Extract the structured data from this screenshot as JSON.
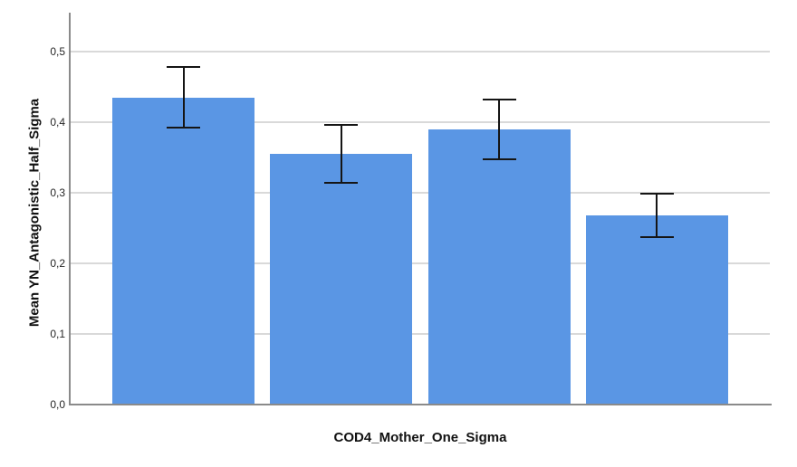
{
  "figure": {
    "background": "#ffffff"
  },
  "chart_data": {
    "type": "bar",
    "title": "",
    "xlabel": "COD4_Mother_One_Sigma",
    "ylabel": "Mean YN_Antagonistic_Half_Sigma",
    "categories": [
      "",
      "",
      "",
      ""
    ],
    "values": [
      0.435,
      0.355,
      0.39,
      0.268
    ],
    "error_low": [
      0.391,
      0.313,
      0.346,
      0.236
    ],
    "error_high": [
      0.479,
      0.397,
      0.433,
      0.3
    ],
    "ylim": [
      0,
      0.55
    ],
    "yticks": [
      0,
      0.1,
      0.2,
      0.3,
      0.4,
      0.5
    ],
    "ytick_labels": [
      "0,0",
      "0,1",
      "0,2",
      "0,3",
      "0,4",
      "0,5"
    ],
    "grid": true,
    "legend": "none",
    "error_bars": true,
    "colors": {
      "bar": "#5A96E4",
      "error": "#151515",
      "gridline": "#D9D9D9",
      "axis": "#8A8A8A",
      "tick_text": "#262626",
      "title_text": "#111111"
    }
  }
}
